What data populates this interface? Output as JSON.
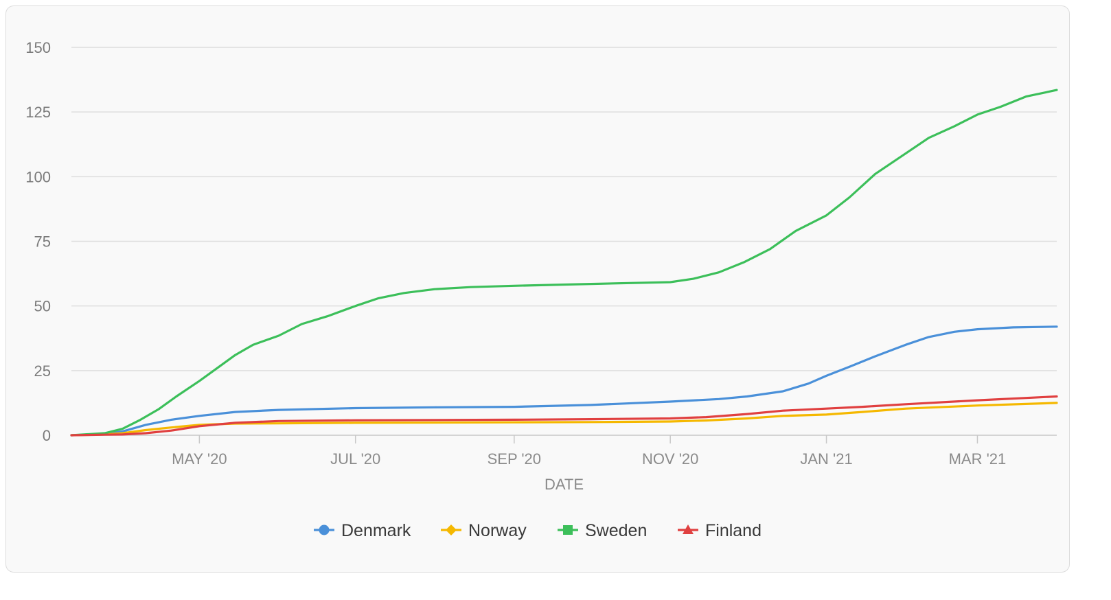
{
  "chart_data": {
    "type": "line",
    "xlabel": "DATE",
    "ylabel": "",
    "ylim": [
      0,
      150
    ],
    "yticks": [
      0,
      25,
      50,
      75,
      100,
      125,
      150
    ],
    "xlim": [
      "2020-03-12",
      "2021-04-01"
    ],
    "xticks": [
      {
        "label": "MAY '20",
        "date": "2020-05-01"
      },
      {
        "label": "JUL '20",
        "date": "2020-07-01"
      },
      {
        "label": "SEP '20",
        "date": "2020-09-01"
      },
      {
        "label": "NOV '20",
        "date": "2020-11-01"
      },
      {
        "label": "JAN '21",
        "date": "2021-01-01"
      },
      {
        "label": "MAR '21",
        "date": "2021-03-01"
      }
    ],
    "grid": "horizontal",
    "legend_position": "bottom",
    "series": [
      {
        "name": "Denmark",
        "color": "#4a90d9",
        "marker": "circle",
        "points": [
          [
            "2020-03-12",
            0
          ],
          [
            "2020-03-25",
            0.5
          ],
          [
            "2020-04-01",
            1.5
          ],
          [
            "2020-04-10",
            4
          ],
          [
            "2020-04-20",
            6
          ],
          [
            "2020-05-01",
            7.5
          ],
          [
            "2020-05-15",
            9
          ],
          [
            "2020-06-01",
            9.8
          ],
          [
            "2020-07-01",
            10.5
          ],
          [
            "2020-08-01",
            10.8
          ],
          [
            "2020-09-01",
            11
          ],
          [
            "2020-10-01",
            11.7
          ],
          [
            "2020-10-15",
            12.3
          ],
          [
            "2020-11-01",
            13
          ],
          [
            "2020-11-20",
            14
          ],
          [
            "2020-12-01",
            15
          ],
          [
            "2020-12-15",
            17
          ],
          [
            "2020-12-25",
            20
          ],
          [
            "2021-01-01",
            23
          ],
          [
            "2021-01-10",
            26.5
          ],
          [
            "2021-01-20",
            30.5
          ],
          [
            "2021-02-01",
            35
          ],
          [
            "2021-02-10",
            38
          ],
          [
            "2021-02-20",
            40
          ],
          [
            "2021-03-01",
            41
          ],
          [
            "2021-03-15",
            41.7
          ],
          [
            "2021-04-01",
            42
          ]
        ]
      },
      {
        "name": "Norway",
        "color": "#f5b800",
        "marker": "diamond",
        "points": [
          [
            "2020-03-12",
            0
          ],
          [
            "2020-03-25",
            0.3
          ],
          [
            "2020-04-01",
            0.8
          ],
          [
            "2020-04-10",
            2
          ],
          [
            "2020-04-20",
            3
          ],
          [
            "2020-05-01",
            4
          ],
          [
            "2020-05-15",
            4.5
          ],
          [
            "2020-06-01",
            4.6
          ],
          [
            "2020-07-01",
            4.8
          ],
          [
            "2020-09-01",
            5
          ],
          [
            "2020-10-01",
            5.1
          ],
          [
            "2020-11-01",
            5.3
          ],
          [
            "2020-11-15",
            5.7
          ],
          [
            "2020-12-01",
            6.5
          ],
          [
            "2020-12-15",
            7.5
          ],
          [
            "2021-01-01",
            8
          ],
          [
            "2021-01-15",
            9
          ],
          [
            "2021-02-01",
            10.3
          ],
          [
            "2021-03-01",
            11.5
          ],
          [
            "2021-04-01",
            12.5
          ]
        ]
      },
      {
        "name": "Sweden",
        "color": "#3cbf5a",
        "marker": "square",
        "points": [
          [
            "2020-03-12",
            0
          ],
          [
            "2020-03-25",
            0.8
          ],
          [
            "2020-04-01",
            2.5
          ],
          [
            "2020-04-08",
            6
          ],
          [
            "2020-04-15",
            10
          ],
          [
            "2020-04-22",
            15
          ],
          [
            "2020-05-01",
            21
          ],
          [
            "2020-05-08",
            26
          ],
          [
            "2020-05-15",
            31
          ],
          [
            "2020-05-22",
            35
          ],
          [
            "2020-06-01",
            38.5
          ],
          [
            "2020-06-10",
            43
          ],
          [
            "2020-06-20",
            46
          ],
          [
            "2020-07-01",
            50
          ],
          [
            "2020-07-10",
            53
          ],
          [
            "2020-07-20",
            55
          ],
          [
            "2020-08-01",
            56.5
          ],
          [
            "2020-08-15",
            57.3
          ],
          [
            "2020-09-01",
            57.8
          ],
          [
            "2020-10-01",
            58.5
          ],
          [
            "2020-11-01",
            59.2
          ],
          [
            "2020-11-10",
            60.5
          ],
          [
            "2020-11-20",
            63
          ],
          [
            "2020-11-30",
            67
          ],
          [
            "2020-12-10",
            72
          ],
          [
            "2020-12-20",
            79
          ],
          [
            "2021-01-01",
            85
          ],
          [
            "2021-01-10",
            92
          ],
          [
            "2021-01-20",
            101
          ],
          [
            "2021-02-01",
            109
          ],
          [
            "2021-02-10",
            115
          ],
          [
            "2021-02-20",
            119.5
          ],
          [
            "2021-03-01",
            124
          ],
          [
            "2021-03-10",
            127
          ],
          [
            "2021-03-20",
            131
          ],
          [
            "2021-04-01",
            133.5
          ]
        ]
      },
      {
        "name": "Finland",
        "color": "#e04040",
        "marker": "triangle",
        "points": [
          [
            "2020-03-12",
            0
          ],
          [
            "2020-03-25",
            0.2
          ],
          [
            "2020-04-01",
            0.3
          ],
          [
            "2020-04-10",
            0.8
          ],
          [
            "2020-04-20",
            1.8
          ],
          [
            "2020-05-01",
            3.5
          ],
          [
            "2020-05-15",
            4.8
          ],
          [
            "2020-06-01",
            5.5
          ],
          [
            "2020-07-01",
            5.8
          ],
          [
            "2020-09-01",
            6
          ],
          [
            "2020-10-01",
            6.2
          ],
          [
            "2020-11-01",
            6.5
          ],
          [
            "2020-11-15",
            7
          ],
          [
            "2020-12-01",
            8.2
          ],
          [
            "2020-12-15",
            9.5
          ],
          [
            "2021-01-01",
            10.3
          ],
          [
            "2021-01-15",
            11
          ],
          [
            "2021-02-01",
            12
          ],
          [
            "2021-03-01",
            13.5
          ],
          [
            "2021-04-01",
            15
          ]
        ]
      }
    ]
  }
}
